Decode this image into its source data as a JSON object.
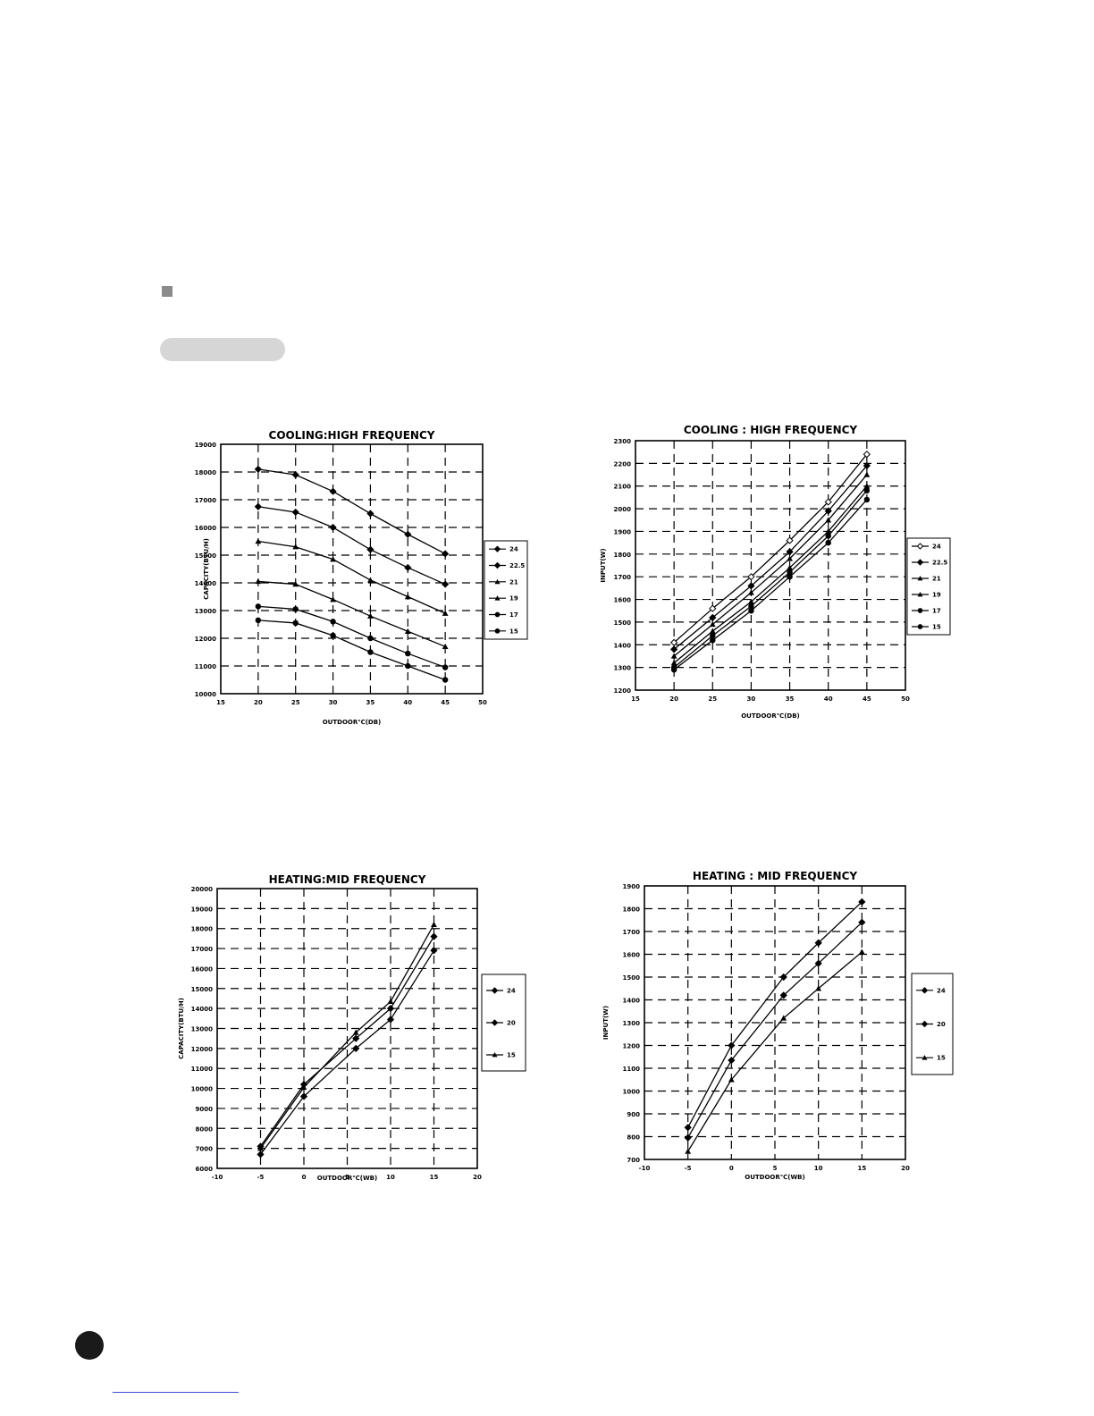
{
  "chart_data": [
    {
      "id": "c1",
      "type": "line",
      "title": "COOLING:HIGH FREQUENCY",
      "xlabel": "OUTDOOR℃(DB)",
      "ylabel": "CAPACITY(BTU/H)",
      "xlim": [
        15,
        50
      ],
      "ylim": [
        10000,
        19000
      ],
      "xticks": [
        15,
        20,
        25,
        30,
        35,
        40,
        45,
        50
      ],
      "yticks": [
        10000,
        11000,
        12000,
        13000,
        14000,
        15000,
        16000,
        17000,
        18000,
        19000
      ],
      "grid": true,
      "legend_position": "right",
      "x": [
        20,
        25,
        30,
        35,
        40,
        45
      ],
      "series": [
        {
          "name": "24",
          "marker": "diamond",
          "values": [
            18100,
            17900,
            17300,
            16500,
            15750,
            15050
          ]
        },
        {
          "name": "22.5",
          "marker": "diamond",
          "values": [
            16750,
            16550,
            16000,
            15200,
            14550,
            13950
          ]
        },
        {
          "name": "21",
          "marker": "triangle",
          "values": [
            15500,
            15300,
            14850,
            14100,
            13500,
            12900
          ]
        },
        {
          "name": "19",
          "marker": "triangle",
          "values": [
            14050,
            13950,
            13400,
            12800,
            12250,
            11700
          ]
        },
        {
          "name": "17",
          "marker": "circle",
          "values": [
            13150,
            13050,
            12600,
            12000,
            11450,
            10950
          ]
        },
        {
          "name": "15",
          "marker": "circle",
          "values": [
            12650,
            12550,
            12100,
            11500,
            11000,
            10500
          ]
        }
      ]
    },
    {
      "id": "c2",
      "type": "line",
      "title": "COOLING : HIGH FREQUENCY",
      "xlabel": "OUTDOOR℃(DB)",
      "ylabel": "INPUT(W)",
      "xlim": [
        15,
        50
      ],
      "ylim": [
        1200,
        2300
      ],
      "xticks": [
        15,
        20,
        25,
        30,
        35,
        40,
        45,
        50
      ],
      "yticks": [
        1200,
        1300,
        1400,
        1500,
        1600,
        1700,
        1800,
        1900,
        2000,
        2100,
        2200,
        2300
      ],
      "grid": true,
      "legend_position": "right",
      "x": [
        20,
        25,
        30,
        35,
        40,
        45
      ],
      "series": [
        {
          "name": "24",
          "marker": "diamond-open",
          "values": [
            1410,
            1560,
            1700,
            1860,
            2030,
            2240
          ]
        },
        {
          "name": "22.5",
          "marker": "diamond",
          "values": [
            1380,
            1520,
            1660,
            1810,
            1990,
            2190
          ]
        },
        {
          "name": "21",
          "marker": "triangle",
          "values": [
            1350,
            1490,
            1630,
            1780,
            1950,
            2150
          ]
        },
        {
          "name": "19",
          "marker": "triangle",
          "values": [
            1320,
            1460,
            1590,
            1740,
            1900,
            2100
          ]
        },
        {
          "name": "17",
          "marker": "circle",
          "values": [
            1300,
            1440,
            1570,
            1720,
            1880,
            2080
          ]
        },
        {
          "name": "15",
          "marker": "circle",
          "values": [
            1290,
            1420,
            1550,
            1700,
            1850,
            2040
          ]
        }
      ]
    },
    {
      "id": "c3",
      "type": "line",
      "title": "HEATING:MID FREQUENCY",
      "xlabel": "OUTDOOR℃(WB)",
      "ylabel": "CAPACITY(BTU/H)",
      "xlim": [
        -10,
        20
      ],
      "ylim": [
        6000,
        20000
      ],
      "xticks": [
        -10,
        -5,
        0,
        5,
        10,
        15,
        20
      ],
      "yticks": [
        6000,
        7000,
        8000,
        9000,
        10000,
        11000,
        12000,
        13000,
        14000,
        15000,
        16000,
        17000,
        18000,
        19000,
        20000
      ],
      "grid": true,
      "legend_position": "right",
      "x": [
        -5,
        0,
        6,
        10,
        15
      ],
      "series": [
        {
          "name": "24",
          "marker": "diamond",
          "values": [
            7100,
            10200,
            12500,
            14000,
            17600
          ]
        },
        {
          "name": "20",
          "marker": "diamond",
          "values": [
            6700,
            9600,
            12000,
            13450,
            16900
          ]
        },
        {
          "name": "15",
          "marker": "triangle",
          "values": [
            7000,
            10050,
            12800,
            14350,
            18200
          ]
        }
      ]
    },
    {
      "id": "c4",
      "type": "line",
      "title": "HEATING : MID FREQUENCY",
      "xlabel": "OUTDOOR℃(WB)",
      "ylabel": "INPUT(W)",
      "xlim": [
        -10,
        20
      ],
      "ylim": [
        700,
        1900
      ],
      "xticks": [
        -10,
        -5,
        0,
        5,
        10,
        15,
        20
      ],
      "yticks": [
        700,
        800,
        900,
        1000,
        1100,
        1200,
        1300,
        1400,
        1500,
        1600,
        1700,
        1800,
        1900
      ],
      "grid": true,
      "legend_position": "right",
      "x": [
        -5,
        0,
        6,
        10,
        15
      ],
      "series": [
        {
          "name": "24",
          "marker": "diamond",
          "values": [
            840,
            1200,
            1500,
            1650,
            1830
          ]
        },
        {
          "name": "20",
          "marker": "diamond",
          "values": [
            795,
            1135,
            1420,
            1560,
            1740
          ]
        },
        {
          "name": "15",
          "marker": "triangle",
          "values": [
            735,
            1050,
            1320,
            1450,
            1610
          ]
        }
      ]
    }
  ]
}
